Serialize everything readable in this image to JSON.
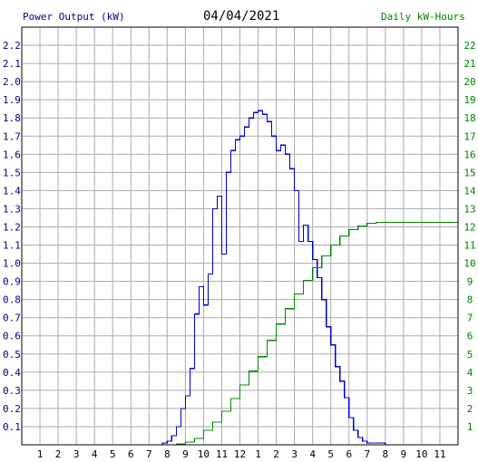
{
  "chart_data": {
    "type": "line",
    "title": "04/04/2021",
    "ylabel_left": "Power Output (kW)",
    "ylabel_right": "Daily kW-Hours",
    "x_ticks": [
      "1",
      "2",
      "3",
      "4",
      "5",
      "6",
      "7",
      "8",
      "9",
      "10",
      "11",
      "12",
      "1",
      "2",
      "3",
      "4",
      "5",
      "6",
      "7",
      "8",
      "9",
      "10",
      "11"
    ],
    "ylim_left": [
      0,
      2.3
    ],
    "y_ticks_left": [
      "0.1",
      "0.2",
      "0.3",
      "0.4",
      "0.5",
      "0.6",
      "0.7",
      "0.8",
      "0.9",
      "1.0",
      "1.1",
      "1.2",
      "1.3",
      "1.4",
      "1.5",
      "1.6",
      "1.7",
      "1.8",
      "1.9",
      "2.0",
      "2.1",
      "2.2"
    ],
    "ylim_right": [
      0,
      23
    ],
    "y_ticks_right": [
      "1",
      "2",
      "3",
      "4",
      "5",
      "6",
      "7",
      "8",
      "9",
      "10",
      "11",
      "12",
      "13",
      "14",
      "15",
      "16",
      "17",
      "18",
      "19",
      "20",
      "21",
      "22"
    ],
    "grid": true,
    "colors": {
      "power": "#0000cc",
      "energy": "#008800",
      "grid": "#aaaaaa",
      "left_axis_text": "#000080",
      "right_axis_text": "#008000"
    },
    "series": [
      {
        "key": "power",
        "axis": "left",
        "x_hours": [
          7.5,
          7.75,
          8.0,
          8.25,
          8.5,
          8.75,
          9.0,
          9.25,
          9.5,
          9.75,
          10.0,
          10.25,
          10.5,
          10.75,
          11.0,
          11.25,
          11.5,
          11.75,
          12.0,
          12.25,
          12.5,
          12.75,
          13.0,
          13.25,
          13.5,
          13.75,
          14.0,
          14.25,
          14.5,
          14.75,
          15.0,
          15.25,
          15.5,
          15.75,
          16.0,
          16.25,
          16.5,
          16.75,
          17.0,
          17.25,
          17.5,
          17.75,
          18.0,
          18.25,
          18.5,
          18.75,
          19.0,
          19.25,
          19.5,
          19.75,
          20.0,
          20.25,
          20.5,
          20.75,
          21.0
        ],
        "values": [
          0.0,
          0.01,
          0.02,
          0.05,
          0.1,
          0.2,
          0.27,
          0.42,
          0.72,
          0.87,
          0.77,
          0.94,
          1.3,
          1.37,
          1.05,
          1.5,
          1.62,
          1.68,
          1.7,
          1.75,
          1.8,
          1.83,
          1.84,
          1.82,
          1.78,
          1.7,
          1.62,
          1.65,
          1.6,
          1.52,
          1.4,
          1.12,
          1.21,
          1.12,
          1.02,
          0.92,
          0.8,
          0.65,
          0.55,
          0.43,
          0.35,
          0.26,
          0.15,
          0.08,
          0.04,
          0.02,
          0.01,
          0.01,
          0.01,
          0.01,
          0.0,
          0.0,
          0.0,
          0.0,
          0.0
        ]
      },
      {
        "key": "energy",
        "axis": "right",
        "x_hours": [
          7.5,
          8.0,
          8.5,
          9.0,
          9.5,
          10.0,
          10.5,
          11.0,
          11.5,
          12.0,
          12.5,
          13.0,
          13.5,
          14.0,
          14.5,
          15.0,
          15.5,
          16.0,
          16.5,
          17.0,
          17.5,
          18.0,
          18.5,
          19.0,
          19.5,
          20.0,
          21.0,
          22.0,
          24.0
        ],
        "values": [
          0.0,
          0.0,
          0.05,
          0.15,
          0.35,
          0.8,
          1.25,
          1.85,
          2.55,
          3.3,
          4.05,
          4.85,
          5.75,
          6.65,
          7.5,
          8.3,
          9.05,
          9.75,
          10.4,
          11.0,
          11.5,
          11.85,
          12.05,
          12.2,
          12.25,
          12.25,
          12.25,
          12.25,
          12.25
        ]
      }
    ]
  }
}
